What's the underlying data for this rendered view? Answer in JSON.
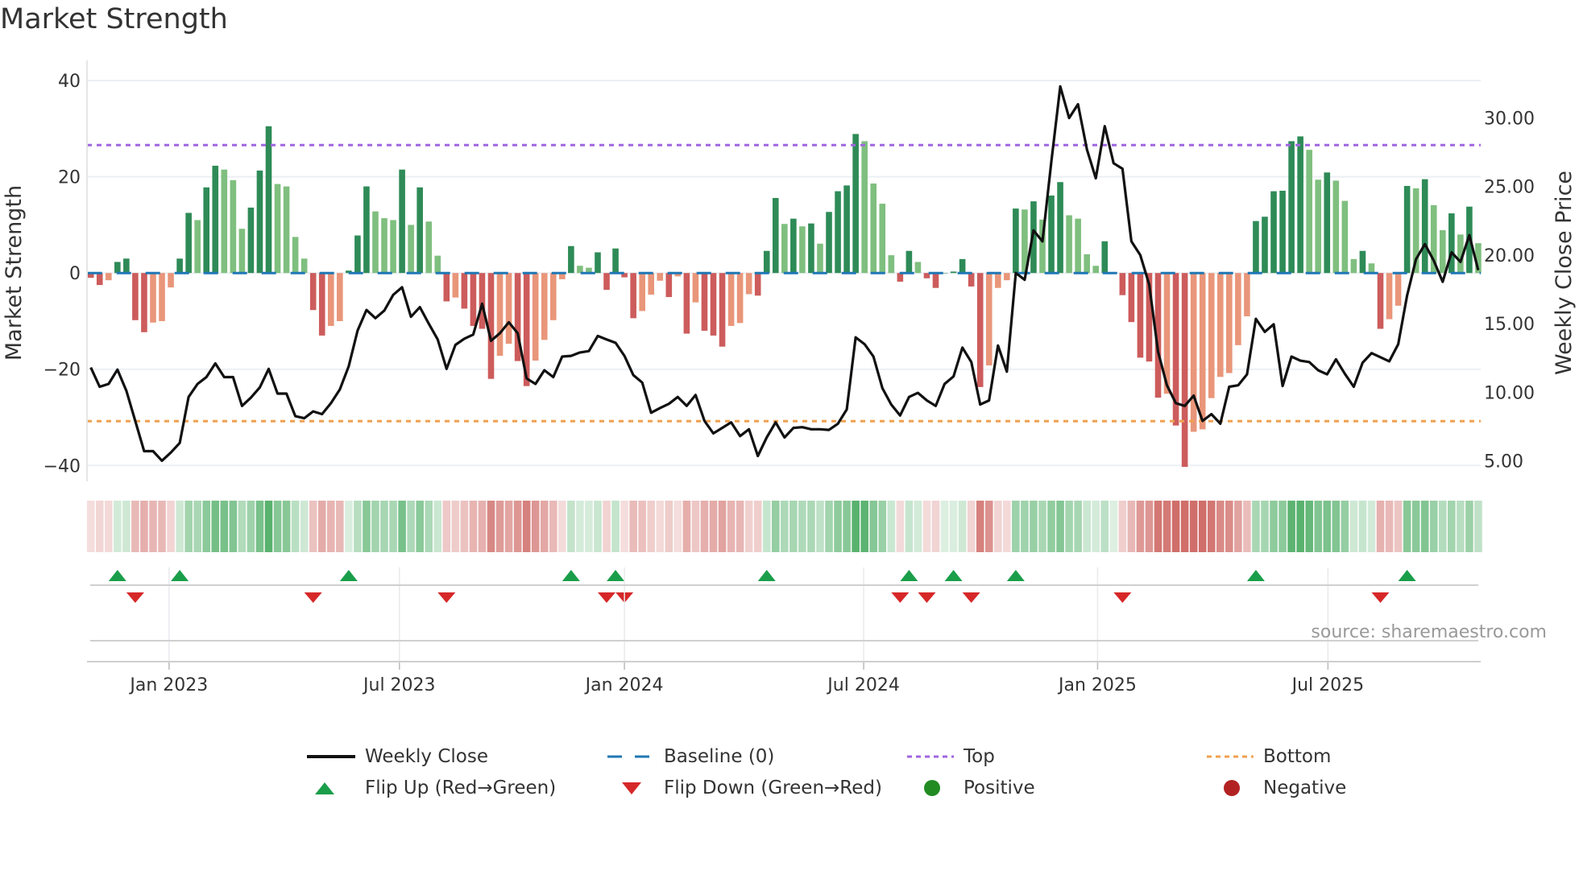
{
  "chart_data": {
    "type": "bar",
    "title": "Market Strength",
    "ylabel": "Market Strength",
    "y2label": "Weekly Close Price",
    "ylim": [
      -43.3,
      44.2
    ],
    "y2lim": [
      3.5,
      34.2
    ],
    "yticks": [
      "40",
      "20",
      "0",
      "−20",
      "−40"
    ],
    "ytick_values": [
      40,
      20,
      0,
      -20,
      -40
    ],
    "y2ticks": [
      "30.00",
      "25.00",
      "20.00",
      "15.00",
      "10.00",
      "5.00"
    ],
    "y2tick_values": [
      30,
      25,
      20,
      15,
      10,
      5
    ],
    "x_ticks": [
      {
        "label": "Jan 2023",
        "week": 8.8
      },
      {
        "label": "Jul 2023",
        "week": 34.7
      },
      {
        "label": "Jan 2024",
        "week": 60.0
      },
      {
        "label": "Jul 2024",
        "week": 86.9
      },
      {
        "label": "Jan 2025",
        "week": 113.2
      },
      {
        "label": "Jul 2025",
        "week": 139.1
      }
    ],
    "grid": true,
    "thresholds": {
      "top": 26.6,
      "bottom": -30.8,
      "baseline": 0
    },
    "strength": [
      -1,
      -2.5,
      -1.5,
      2.3,
      3,
      -9.8,
      -12.3,
      -10.3,
      -10,
      -3,
      3,
      12.5,
      11,
      17.8,
      22.3,
      21.5,
      19.3,
      9.2,
      13.6,
      21.3,
      30.5,
      18.5,
      18,
      7.5,
      3,
      -7.7,
      -13,
      -11,
      -10,
      0.5,
      7.8,
      18,
      12.8,
      11.4,
      11,
      21.5,
      10,
      17.8,
      10.7,
      3.6,
      -5.9,
      -5.1,
      -7.4,
      -11,
      -11.6,
      -22,
      -17.2,
      -14.7,
      -18.3,
      -23.5,
      -18.2,
      -13.9,
      -9.8,
      -1.3,
      5.6,
      1.5,
      1.1,
      4.3,
      -3.5,
      5.1,
      -0.9,
      -9.4,
      -7.9,
      -4.5,
      -1.6,
      -5,
      -0.7,
      -12.6,
      -6.1,
      -12,
      -13,
      -15.3,
      -11,
      -10.4,
      -4.4,
      -4.7,
      4.6,
      15.6,
      10.2,
      11.3,
      9.7,
      10.3,
      6.1,
      12.7,
      17,
      18.2,
      28.9,
      27.4,
      18.6,
      14.4,
      3.7,
      -1.8,
      4.6,
      2.3,
      -1.1,
      -3.1,
      0,
      0.3,
      2.9,
      -2.8,
      -23.7,
      -19.2,
      -3.1,
      -1.5,
      13.4,
      13.2,
      14.9,
      11.1,
      16.1,
      18.9,
      12,
      11.3,
      3.9,
      1.5,
      6.6,
      0,
      -4.6,
      -10.2,
      -17.6,
      -18.4,
      -25.9,
      -25.1,
      -31.7,
      -40.3,
      -33,
      -32.5,
      -26,
      -21.6,
      -20.8,
      -15,
      -9,
      10.8,
      11.7,
      17,
      17.1,
      27.4,
      28.4,
      25.6,
      19.4,
      20.9,
      19.2,
      15,
      2.9,
      4.6,
      2,
      -11.6,
      -9.6,
      -6.8,
      18.1,
      17.6,
      19.5,
      14.1,
      8.9,
      12.4,
      8,
      13.8,
      6.2
    ],
    "close": [
      11.8,
      10.4,
      10.6,
      11.65,
      10.1,
      7.9,
      5.7,
      5.7,
      5.0,
      5.6,
      6.3,
      9.65,
      10.6,
      11.1,
      12.1,
      11.1,
      11.1,
      9.0,
      9.6,
      10.35,
      11.7,
      9.9,
      9.9,
      8.25,
      8.1,
      8.6,
      8.4,
      9.2,
      10.2,
      11.9,
      14.5,
      16.0,
      15.4,
      15.95,
      17.1,
      17.65,
      15.5,
      16.2,
      15.0,
      13.85,
      11.7,
      13.45,
      13.9,
      14.2,
      16.45,
      13.75,
      14.3,
      15.1,
      14.3,
      11.0,
      10.6,
      11.6,
      11.1,
      12.6,
      12.65,
      12.9,
      13.0,
      14.1,
      13.85,
      13.6,
      12.65,
      11.25,
      10.7,
      8.5,
      8.85,
      9.15,
      9.65,
      9.0,
      9.8,
      7.9,
      7.0,
      7.4,
      7.8,
      6.8,
      7.3,
      5.35,
      6.7,
      7.8,
      6.7,
      7.4,
      7.45,
      7.3,
      7.3,
      7.25,
      7.7,
      8.75,
      14.0,
      13.5,
      12.6,
      10.3,
      9.1,
      8.3,
      9.65,
      9.95,
      9.4,
      9.0,
      10.6,
      11.15,
      13.25,
      12.2,
      9.1,
      9.4,
      13.4,
      11.5,
      18.7,
      18.2,
      21.8,
      21.0,
      26.8,
      32.3,
      30.0,
      31.0,
      27.7,
      25.6,
      29.4,
      26.7,
      26.3,
      21.0,
      20.0,
      17.85,
      12.95,
      10.5,
      9.2,
      9.0,
      9.75,
      7.9,
      8.4,
      7.7,
      10.4,
      10.5,
      11.3,
      15.35,
      14.4,
      14.95,
      10.45,
      12.6,
      12.3,
      12.2,
      11.6,
      11.3,
      12.4,
      11.35,
      10.4,
      12.15,
      12.85,
      12.55,
      12.25,
      13.5,
      17.05,
      19.7,
      20.8,
      19.6,
      18.05,
      20.2,
      19.5,
      21.45,
      18.9
    ],
    "legend": {
      "weekly_close": "Weekly Close",
      "baseline": "Baseline (0)",
      "top": "Top",
      "bottom": "Bottom",
      "flip_up": "Flip Up (Red→Green)",
      "flip_down": "Flip Down (Green→Red)",
      "positive": "Positive",
      "negative": "Negative",
      "placement": "bottom"
    },
    "colors": {
      "rising_positive": "#2e8b57",
      "falling_positive": "#7fbf7f",
      "falling_negative": "#cd5c5c",
      "rising_negative": "#e9967a",
      "line": "#111111",
      "baseline": "#1f77b4",
      "top": "#a066e0",
      "bottom": "#f0a050",
      "flip_up": "#1a9e4a",
      "flip_down": "#d62728",
      "positive": "#228b22",
      "negative": "#b22222"
    },
    "source": "source: sharemaestro.com"
  }
}
